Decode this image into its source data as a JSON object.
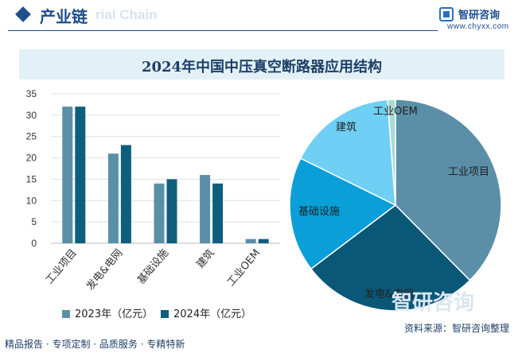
{
  "header": {
    "title": "产业链",
    "ghost_text": "rial Chain"
  },
  "logo": {
    "name": "智研咨询",
    "url": "www.chyxx.com"
  },
  "watermark": "智研咨询",
  "footer": {
    "tagline": "精品报告 · 专项定制 · 品质服务 · 专精特新",
    "source": "资料来源：智研咨询整理"
  },
  "colors": {
    "series_2023": "#5a8fa8",
    "series_2024": "#0d5f7c"
  },
  "chart_data": [
    {
      "type": "bar",
      "title": "2024年中国中压真空断路器应用结构",
      "categories": [
        "工业项目",
        "发电&电网",
        "基础设施",
        "建筑",
        "工业OEM"
      ],
      "series": [
        {
          "name": "2023年（亿元）",
          "values": [
            32,
            21,
            14,
            16,
            1
          ]
        },
        {
          "name": "2024年（亿元）",
          "values": [
            32,
            23,
            15,
            14,
            1
          ]
        }
      ],
      "ylim": [
        0,
        35
      ],
      "yticks": [
        0,
        5,
        10,
        15,
        20,
        25,
        30,
        35
      ],
      "xlabel": "",
      "ylabel": "",
      "legend": "bottom"
    },
    {
      "type": "pie",
      "labels": [
        "工业项目",
        "发电&电网",
        "基础设施",
        "建筑",
        "工业OEM"
      ],
      "values": [
        37.6,
        27.1,
        17.6,
        16.5,
        1.2
      ],
      "colors": [
        "#5b8fa8",
        "#0a5878",
        "#0a9fd8",
        "#6fcff5",
        "#a9dcd6"
      ]
    }
  ]
}
